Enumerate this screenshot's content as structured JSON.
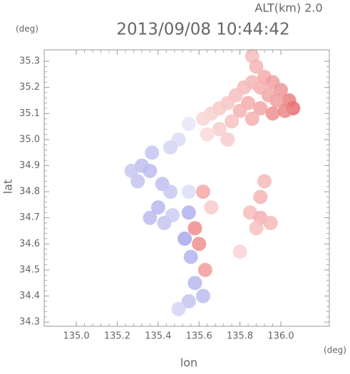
{
  "chart_data": {
    "type": "scatter",
    "title": "2013/09/08 10:44:42",
    "subtitle": "ALT(km) 2.0",
    "y_unit": "(deg)",
    "x_unit": "(deg)",
    "xlabel": "lon",
    "ylabel": "lat",
    "xlim": [
      134.843,
      136.237
    ],
    "ylim": [
      34.284,
      35.344
    ],
    "xticks": [
      {
        "value": 135,
        "label": "135.0"
      },
      135.2,
      135.4,
      135.6,
      135.8,
      {
        "value": 136,
        "label": "136.0"
      }
    ],
    "yticks": [
      34.3,
      34.4,
      34.5,
      34.6,
      34.7,
      34.8,
      34.9,
      {
        "value": 35,
        "label": "35.0"
      },
      35.1,
      35.2,
      35.3
    ],
    "x": [
      135.86,
      135.88,
      135.92,
      135.96,
      136.0,
      136.04,
      136.06,
      135.98,
      135.94,
      135.9,
      135.86,
      135.82,
      135.78,
      135.74,
      135.7,
      135.66,
      135.62,
      135.84,
      135.8,
      135.9,
      135.96,
      136.02,
      135.86,
      135.76,
      135.7,
      135.64,
      135.74,
      135.55,
      135.5,
      135.46,
      135.37,
      135.32,
      135.27,
      135.3,
      135.36,
      135.42,
      135.46,
      135.4,
      135.36,
      135.43,
      135.47,
      135.92,
      135.9,
      135.85,
      135.9,
      135.95,
      135.88,
      135.8,
      135.55,
      135.58,
      135.53,
      135.6,
      135.56,
      135.63,
      135.58,
      135.62,
      135.55,
      135.5,
      135.62,
      135.55,
      135.66
    ],
    "y": [
      35.32,
      35.28,
      35.24,
      35.22,
      35.19,
      35.15,
      35.12,
      35.15,
      35.17,
      35.2,
      35.22,
      35.2,
      35.17,
      35.14,
      35.12,
      35.1,
      35.08,
      35.14,
      35.11,
      35.12,
      35.1,
      35.11,
      35.08,
      35.07,
      35.04,
      35.02,
      35.0,
      35.06,
      35.0,
      34.97,
      34.95,
      34.9,
      34.88,
      34.84,
      34.88,
      34.83,
      34.8,
      34.74,
      34.7,
      34.68,
      34.71,
      34.84,
      34.78,
      34.72,
      34.7,
      34.68,
      34.66,
      34.57,
      34.72,
      34.66,
      34.62,
      34.6,
      34.55,
      34.5,
      34.45,
      34.4,
      34.38,
      34.35,
      34.8,
      34.8,
      34.74
    ],
    "colors": [
      "#f6bcbc",
      "#f6b4b4",
      "#f4aaaa",
      "#f2a0a0",
      "#f09898",
      "#ec8080",
      "#e87070",
      "#f0a0a0",
      "#f2a8a8",
      "#f4b0b0",
      "#f6b6b6",
      "#f6baba",
      "#f7c0c0",
      "#f8c6c6",
      "#f8caca",
      "#f9d0d0",
      "#fad6d6",
      "#f4acac",
      "#f5b4b4",
      "#f2a4a4",
      "#ee9090",
      "#ec8888",
      "#f4b0b0",
      "#f7c2c2",
      "#f8cccc",
      "#fad8d8",
      "#f8cccc",
      "#e6e6f8",
      "#dcdcf6",
      "#d4d4f4",
      "#c6c6f2",
      "#c0c0f0",
      "#c8c8f2",
      "#c4c4f0",
      "#bcbcee",
      "#c0c0f0",
      "#c8c8f2",
      "#b8b8ee",
      "#bcbcee",
      "#c4c4f0",
      "#ccccf2",
      "#f6baba",
      "#f4b4b4",
      "#f6bcbc",
      "#f4b0b0",
      "#f6b8b8",
      "#f7c2c2",
      "#fad4d4",
      "#b0b0ee",
      "#f08c8c",
      "#a8a8ec",
      "#f09090",
      "#b4b4ee",
      "#f29c9c",
      "#b8b8ee",
      "#bcbcf0",
      "#c4c4f0",
      "#d4d4f4",
      "#f4a8a8",
      "#dcdcf6",
      "#f8caca"
    ],
    "grid": false
  }
}
